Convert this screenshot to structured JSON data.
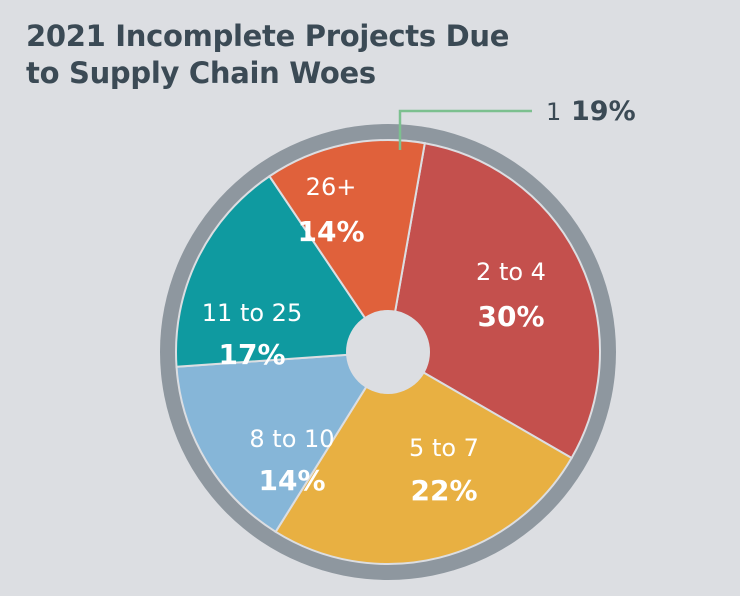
{
  "chart_data": {
    "type": "pie",
    "title_lines": [
      "2021 Incomplete Projects Due",
      "to Supply Chain Woes"
    ],
    "slices": [
      {
        "label": "1",
        "value": 19,
        "value_label": "19%",
        "color": "#7cc08f",
        "value_text_color": "#3b4a55"
      },
      {
        "label": "2 to 4",
        "value": 30,
        "value_label": "30%",
        "color": "#c4504d",
        "value_text_color": "#ffffff"
      },
      {
        "label": "5 to 7",
        "value": 22,
        "value_label": "22%",
        "color": "#e8b042",
        "value_text_color": "#ffffff"
      },
      {
        "label": "8 to 10",
        "value": 14,
        "value_label": "14%",
        "color": "#86b6d8",
        "value_text_color": "#ffffff"
      },
      {
        "label": "11 to 25",
        "value": 17,
        "value_label": "17%",
        "color": "#0f9aa0",
        "value_text_color": "#ffffff"
      },
      {
        "label": "26+",
        "value": 14,
        "value_label": "14%",
        "color": "#e0613b",
        "value_text_color": "#ffffff"
      }
    ],
    "ring_color": "#8e979f",
    "hole_color": "#dcdee2"
  }
}
